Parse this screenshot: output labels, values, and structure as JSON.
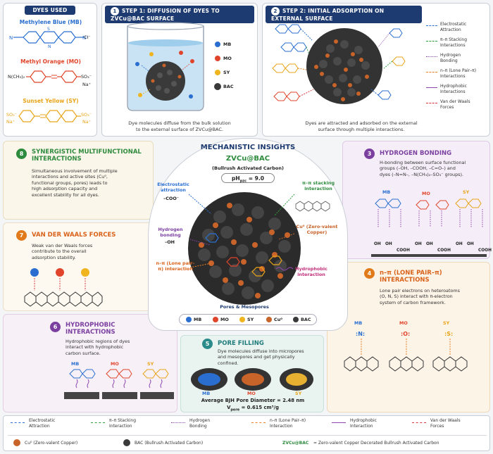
{
  "dyes_used": {
    "title": "DYES USED",
    "mb_name": "Methylene Blue (MB)",
    "mo_name": "Methyl Orange (MO)",
    "sy_name": "Sunset Yellow (SY)",
    "mb_cl": "Cl⁻",
    "mo_group": "N(CH₃)₂",
    "mo_so3": "SO₃⁻",
    "mo_na": "Na⁺",
    "sy_so3_left": "SO₃⁻",
    "sy_na_left": "Na⁺",
    "sy_so3_right": "SO₃⁻",
    "sy_na_right": "Na⁺"
  },
  "step1": {
    "num": "1",
    "title": "STEP 1: DIFFUSION OF DYES TO ZVCu@BAC SURFACE",
    "legend": [
      "MB",
      "MO",
      "SY",
      "BAC"
    ],
    "caption_line1": "Dye molecules diffuse from the bulk solution",
    "caption_line2": "to the external surface of ZVCu@BAC."
  },
  "step2": {
    "num": "2",
    "title": "STEP 2: INITIAL ADSORPTION ON EXTERNAL SURFACE",
    "legend": [
      {
        "label1": "Electrostatic",
        "label2": "Attraction",
        "color": "#2a6fd0",
        "style": "dashed"
      },
      {
        "label1": "π–π Stacking",
        "label2": "Interactions",
        "color": "#2e9e3e",
        "style": "dashed"
      },
      {
        "label1": "Hydrogen",
        "label2": "Bonding",
        "color": "#8e44ad",
        "style": "dotted"
      },
      {
        "label1": "n–π (Lone Pair–π)",
        "label2": "Interactions",
        "color": "#e67e22",
        "style": "dashed"
      },
      {
        "label1": "Hydrophobic",
        "label2": "Interactions",
        "color": "#8e44ad",
        "style": "wavy"
      },
      {
        "label1": "Van der Waals",
        "label2": "Forces",
        "color": "#d9363e",
        "style": "dashed"
      }
    ],
    "caption_line1": "Dyes are attracted and adsorbed on the external",
    "caption_line2": "surface through multiple interactions."
  },
  "center": {
    "title": "MECHANISTIC INSIGHTS",
    "subtitle": "ZVCu@BAC",
    "subsubtitle": "(Bullrush Activated Carbon)",
    "ph_label": "pH",
    "ph_sub": "pzc",
    "ph_value": "= 9.0",
    "labels": {
      "electrostatic": "Electrostatic attraction",
      "coo": "–COO⁻",
      "pipi": "π–π stacking interaction",
      "hbond": "Hydrogen bonding",
      "oh": "–OH",
      "cu": "Cu⁰ (Zero-valent Copper)",
      "npi": "n–π (Lone pair–π) interaction",
      "hydrophobic": "Hydrophobic interaction",
      "pores": "Pores & Mesopores"
    },
    "legend": [
      "MB",
      "MO",
      "SY",
      "Cu⁰",
      "BAC"
    ]
  },
  "sec8": {
    "num": "8",
    "title_line1": "SYNERGISTIC MULTIFUNCTIONAL",
    "title_line2": "INTERACTIONS",
    "text": [
      "Simultaneous involvement of multiple",
      "interactions and active sites (Cu⁰,",
      "functional groups, pores) leads to",
      "high adsorption capacity and",
      "excellent stability for all dyes."
    ]
  },
  "sec7": {
    "num": "7",
    "title": "VAN DER WAALS FORCES",
    "text": [
      "Weak van der Waals forces",
      "contribute to the overall",
      "adsorption stability."
    ]
  },
  "sec6": {
    "num": "6",
    "title_line1": "HYDROPHOBIC",
    "title_line2": "INTERACTIONS",
    "text": [
      "Hydrophobic regions of dyes",
      "interact with hydrophobic",
      "carbon surface."
    ],
    "dyes": [
      "MB",
      "MO",
      "SY"
    ]
  },
  "sec5": {
    "num": "5",
    "title": "PORE FILLING",
    "text": [
      "Dye molecules diffuse into micropores",
      "and mesopores and get physically",
      "confined."
    ],
    "dyes": [
      "MB",
      "MO",
      "SY"
    ],
    "pore_diameter": "Average BJH Pore Diameter = 2.48 nm",
    "pore_volume_label": "V",
    "pore_volume_sub": "pore",
    "pore_volume_value": " = 0.615 cm³/g"
  },
  "sec3": {
    "num": "3",
    "title": "HYDROGEN BONDING",
    "text": [
      "H-bonding between surface functional",
      "groups (–OH, –COOH, –C=O–) and",
      "dyes (–N=N–, –N(CH₃)₂–SO₃⁻ groups)."
    ],
    "dyes": [
      "MB",
      "MO",
      "SY"
    ],
    "surface_groups": [
      "OH",
      "OH",
      "COOH",
      "OH",
      "OH",
      "COOH",
      "OH",
      "OH",
      "COOH"
    ]
  },
  "sec4": {
    "num": "4",
    "title_line1": "n–π (LONE PAIR–π)",
    "title_line2": "INTERACTIONS",
    "text": [
      "Lone pair electrons on heteroatoms",
      "(O, N, S) interact with π-electron",
      "system of carbon framework."
    ],
    "dyes": [
      "MB",
      "MO",
      "SY"
    ]
  },
  "bottom_legend": {
    "row1": [
      {
        "label1": "Electrostatic",
        "label2": "Attraction",
        "color": "#2a6fd0"
      },
      {
        "label1": "π–π Stacking",
        "label2": "Interaction",
        "color": "#2e9e3e"
      },
      {
        "label1": "Hydrogen",
        "label2": "Bonding",
        "color": "#8e44ad"
      },
      {
        "label1": "n–π (Lone Pair–π)",
        "label2": "Interaction",
        "color": "#e67e22"
      },
      {
        "label1": "Hydrophobic",
        "label2": "Interaction",
        "color": "#8e44ad"
      },
      {
        "label1": "Van der Waals",
        "label2": "Forces",
        "color": "#d9363e"
      }
    ],
    "cu_label": "Cu⁰ (Zero-valent Copper)",
    "bac_label": "BAC (Bullrush Activated Carbon)",
    "zv_term": "ZVCu@BAC",
    "zv_def": "=   Zero-valent Copper Decorated Bullrush Activated Carbon"
  },
  "colors": {
    "navy": "#1d3b70",
    "mb": "#2a6fd0",
    "mo": "#e0452b",
    "sy": "#f0b41e",
    "cu": "#c8642a",
    "green": "#2e8b3e",
    "purple": "#7b3fa0",
    "orange": "#e07a1a",
    "bac": "#3a3a3a"
  }
}
